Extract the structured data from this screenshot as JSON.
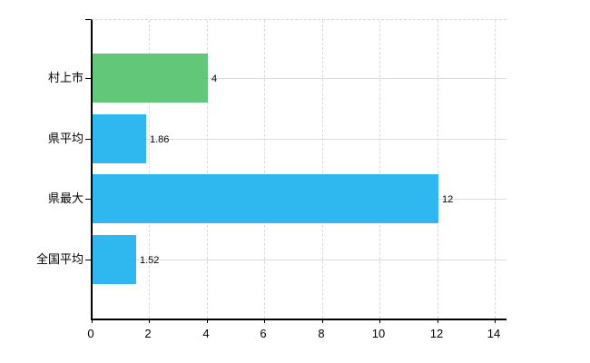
{
  "chart_data": {
    "type": "bar",
    "orientation": "horizontal",
    "title": "",
    "xlabel": "",
    "ylabel": "",
    "categories": [
      "村上市",
      "県平均",
      "県最大",
      "全国平均"
    ],
    "values": [
      4,
      1.86,
      12,
      1.52
    ],
    "value_labels": [
      "4",
      "1.86",
      "12",
      "1.52"
    ],
    "bar_colors": [
      "#62c778",
      "#2fb7f0",
      "#2fb7f0",
      "#2fb7f0"
    ],
    "xlim": [
      0,
      14
    ],
    "x_ticks": [
      0,
      2,
      4,
      6,
      8,
      10,
      12,
      14
    ],
    "grid": "on",
    "legend": "none",
    "colors": {
      "green_bar": "#62c778",
      "blue_bar": "#2fb7f0",
      "gridline": "#d9d9d9",
      "axis": "#000000",
      "text": "#000000",
      "background": "#ffffff"
    }
  }
}
